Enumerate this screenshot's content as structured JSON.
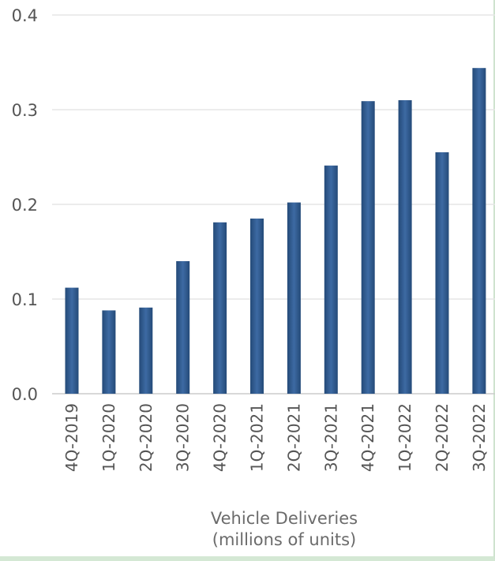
{
  "colors": {
    "bar": "#3d6aa3",
    "bar_edge": "#244a78",
    "grid": "#e6e6e6",
    "axis": "#cccccc",
    "tick_text": "#555555",
    "label_text": "#6b6b6b"
  },
  "chart_data": {
    "type": "bar",
    "categories": [
      "4Q-2019",
      "1Q-2020",
      "2Q-2020",
      "3Q-2020",
      "4Q-2020",
      "1Q-2021",
      "2Q-2021",
      "3Q-2021",
      "4Q-2021",
      "1Q-2022",
      "2Q-2022",
      "3Q-2022"
    ],
    "values": [
      0.112,
      0.088,
      0.091,
      0.14,
      0.181,
      0.185,
      0.202,
      0.241,
      0.309,
      0.31,
      0.255,
      0.344
    ],
    "yticks": [
      "0.0",
      "0.1",
      "0.2",
      "0.3",
      "0.4"
    ],
    "ylim": [
      0,
      0.4
    ],
    "grid": true,
    "legend": "none",
    "xlabel": "Vehicle Deliveries",
    "xlabel_sub": "(millions of units)",
    "title": "",
    "ylabel": ""
  }
}
